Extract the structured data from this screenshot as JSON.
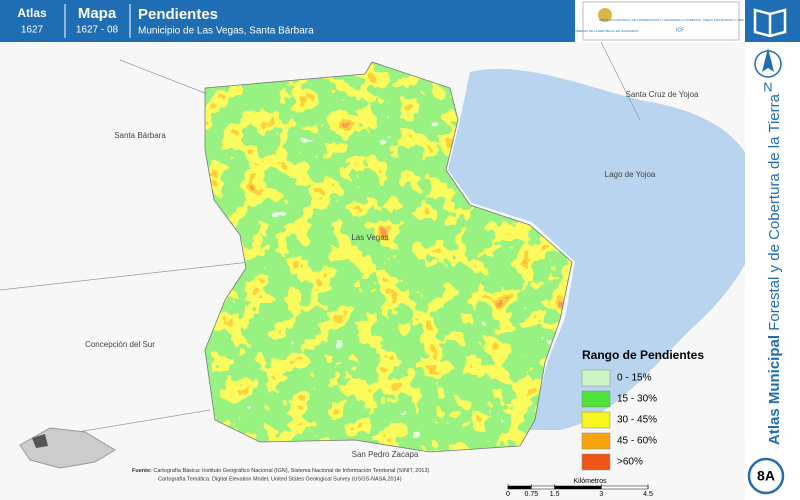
{
  "header": {
    "atlas_label": "Atlas",
    "atlas_code": "1627",
    "map_label": "Mapa",
    "map_code": "1627 - 08",
    "title": "Pendientes",
    "subtitle": "Municipio de Las Vegas, Santa Bárbara"
  },
  "logo": {
    "government": "GOBIERNO DE LA REPÚBLICA DE HONDURAS",
    "institute": "INSTITUTO NACIONAL DE CONSERVACIÓN Y DESARROLLO FORESTAL, ÁREAS PROTEGIDAS Y VIDA SILVESTRE",
    "acronym": "ICF"
  },
  "sidebar": {
    "north": "N",
    "atlas_bold": "Atlas Municipal",
    "atlas_rest": "Forestal y de Cobertura de la Tierra",
    "page": "8A"
  },
  "places": [
    "Santa Bárbara",
    "Santa Cruz de Yojoa",
    "Lago de Yojoa",
    "Las Vegas",
    "Concepción del Sur",
    "San Pedro Zacapa"
  ],
  "legend": {
    "title": "Rango de Pendientes",
    "items": [
      {
        "label": "0 - 15%",
        "color": "#ccf5c4"
      },
      {
        "label": "15 - 30%",
        "color": "#4fe33a"
      },
      {
        "label": "30 - 45%",
        "color": "#f7f51c"
      },
      {
        "label": "45 - 60%",
        "color": "#f8a40c"
      },
      {
        "label": ">60%",
        "color": "#ee5618"
      }
    ]
  },
  "source": {
    "label": "Fuente:",
    "line1": "Cartografía Básica: Instituto Geográfico Nacional (IGN), Sistema Nacional de Información Territorial (SINIT, 2013)",
    "line2": "Cartografía Temática: Digital Elevation Model, United States Geological Survey (USGS-NASA,2014)"
  },
  "scale": {
    "unit": "Kilómetros",
    "ticks": [
      0,
      0.75,
      1.5,
      3,
      4.5
    ]
  }
}
